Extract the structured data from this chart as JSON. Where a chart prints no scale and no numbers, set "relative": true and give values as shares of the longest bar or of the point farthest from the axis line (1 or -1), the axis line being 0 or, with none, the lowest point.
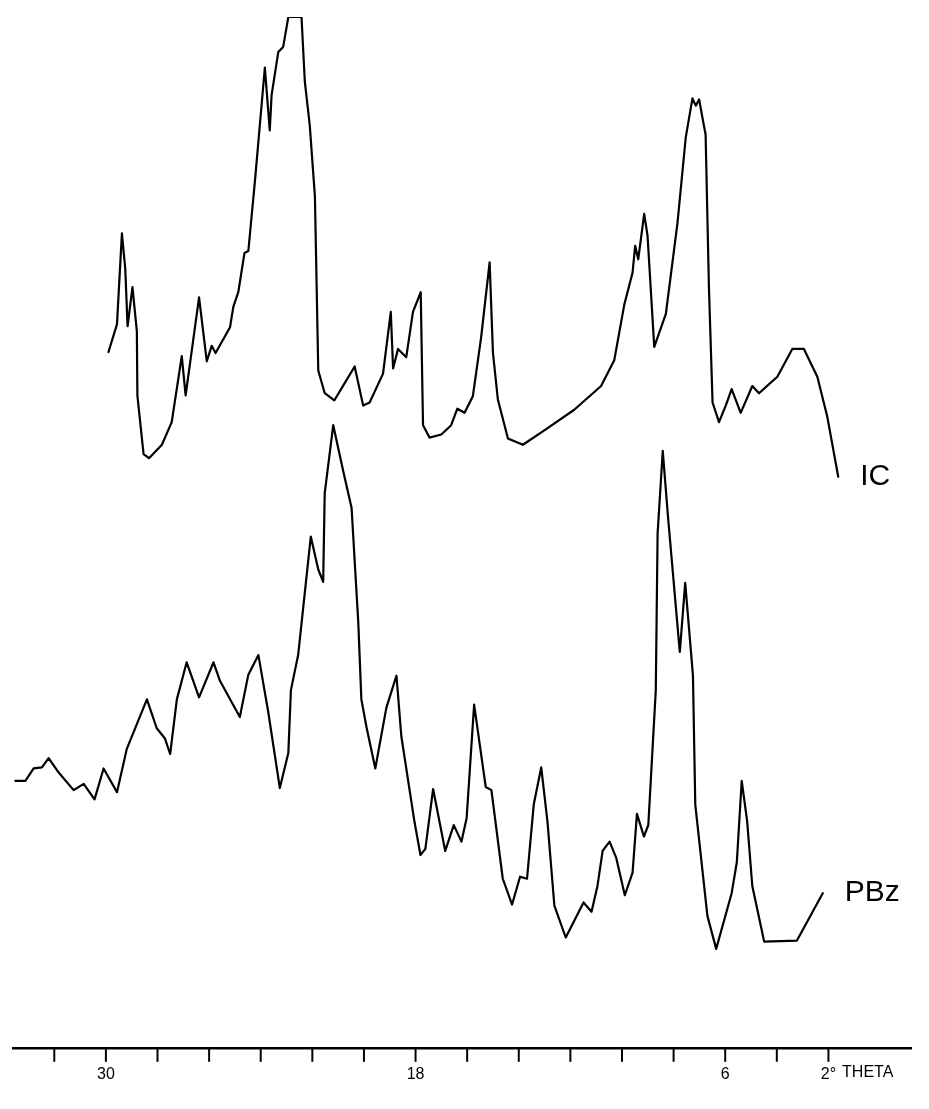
{
  "chart_data": {
    "type": "line",
    "xlabel": "THETA",
    "relative": true,
    "marker": "none",
    "xlim": [
      33.6,
      -1.2
    ],
    "xticks": [
      {
        "value": 32,
        "label": null
      },
      30,
      {
        "value": 28,
        "label": null
      },
      {
        "value": 26,
        "label": null
      },
      {
        "value": 24,
        "label": null
      },
      {
        "value": 22,
        "label": null
      },
      {
        "value": 20,
        "label": null
      },
      18,
      {
        "value": 16,
        "label": null
      },
      {
        "value": 14,
        "label": null
      },
      {
        "value": 12,
        "label": null
      },
      {
        "value": 10,
        "label": null
      },
      {
        "value": 8,
        "label": null
      },
      6,
      {
        "value": 4,
        "label": null
      },
      {
        "value": 2,
        "label": "2°"
      }
    ],
    "series": [
      {
        "name": "IC",
        "color": "#000000",
        "x": [
          29.9,
          29.57,
          29.38,
          29.25,
          29.16,
          28.97,
          28.8,
          28.78,
          28.54,
          28.33,
          27.83,
          27.45,
          27.06,
          26.91,
          26.39,
          26.09,
          25.9,
          25.75,
          25.19,
          25.06,
          24.87,
          24.63,
          24.48,
          24.22,
          23.84,
          23.65,
          23.58,
          23.32,
          23.13,
          22.93,
          22.42,
          22.29,
          22.1,
          21.9,
          21.77,
          21.52,
          21.15,
          20.74,
          20.36,
          20.22,
          20.03,
          19.78,
          19.26,
          18.96,
          18.87,
          18.68,
          18.36,
          18.1,
          17.8,
          17.71,
          17.46,
          17.0,
          16.62,
          16.38,
          16.1,
          15.78,
          15.46,
          15.13,
          15.0,
          14.81,
          14.42,
          13.84,
          13.01,
          11.85,
          10.81,
          10.3,
          9.91,
          9.59,
          9.49,
          9.37,
          9.14,
          9.01,
          8.75,
          8.3,
          7.85,
          7.53,
          7.27,
          7.14,
          7.01,
          6.88,
          6.76,
          6.63,
          6.49,
          6.24,
          5.98,
          5.75,
          5.4,
          4.95,
          4.69,
          3.98,
          3.4,
          2.95,
          2.43,
          2.05,
          1.62
        ],
        "values": [
          0.675,
          0.702,
          0.79,
          0.756,
          0.7,
          0.738,
          0.695,
          0.633,
          0.576,
          0.572,
          0.585,
          0.607,
          0.671,
          0.633,
          0.728,
          0.666,
          0.681,
          0.674,
          0.699,
          0.719,
          0.733,
          0.771,
          0.773,
          0.842,
          0.951,
          0.89,
          0.924,
          0.966,
          0.971,
          1.0,
          1.0,
          0.937,
          0.895,
          0.826,
          0.657,
          0.635,
          0.628,
          0.645,
          0.661,
          0.645,
          0.623,
          0.626,
          0.654,
          0.714,
          0.659,
          0.678,
          0.67,
          0.714,
          0.733,
          0.604,
          0.592,
          0.595,
          0.604,
          0.62,
          0.616,
          0.632,
          0.689,
          0.762,
          0.674,
          0.629,
          0.591,
          0.585,
          0.599,
          0.619,
          0.642,
          0.667,
          0.721,
          0.752,
          0.778,
          0.765,
          0.809,
          0.788,
          0.68,
          0.712,
          0.8,
          0.883,
          0.921,
          0.914,
          0.92,
          0.902,
          0.886,
          0.737,
          0.626,
          0.607,
          0.623,
          0.639,
          0.616,
          0.642,
          0.635,
          0.651,
          0.678,
          0.678,
          0.651,
          0.613,
          0.554
        ]
      },
      {
        "name": "PBz",
        "color": "#000000",
        "x": [
          33.51,
          33.12,
          32.8,
          32.48,
          32.22,
          31.83,
          31.25,
          30.86,
          30.44,
          30.09,
          29.57,
          29.19,
          28.41,
          28.03,
          27.71,
          27.51,
          27.25,
          26.87,
          26.39,
          25.83,
          25.58,
          24.81,
          24.48,
          24.09,
          23.71,
          23.26,
          22.93,
          22.83,
          22.55,
          22.06,
          21.77,
          21.58,
          21.52,
          21.19,
          20.8,
          20.48,
          20.22,
          20.1,
          19.9,
          19.56,
          19.13,
          18.74,
          18.55,
          18.04,
          17.81,
          17.62,
          17.32,
          16.85,
          16.52,
          16.22,
          16.02,
          15.73,
          15.28,
          15.06,
          14.62,
          14.26,
          13.95,
          13.68,
          13.42,
          13.13,
          12.89,
          12.62,
          12.18,
          11.49,
          11.18,
          10.95,
          10.75,
          10.48,
          10.22,
          9.89,
          9.59,
          9.42,
          9.15,
          8.98,
          8.69,
          8.62,
          8.42,
          8.22,
          7.76,
          7.55,
          7.25,
          7.16,
          6.69,
          6.35,
          5.75,
          5.55,
          5.36,
          5.15,
          4.95,
          4.49,
          3.22,
          2.22
        ],
        "values": [
          0.259,
          0.259,
          0.271,
          0.272,
          0.281,
          0.267,
          0.25,
          0.256,
          0.241,
          0.271,
          0.248,
          0.29,
          0.338,
          0.31,
          0.3,
          0.285,
          0.338,
          0.374,
          0.34,
          0.374,
          0.356,
          0.321,
          0.362,
          0.381,
          0.326,
          0.252,
          0.286,
          0.347,
          0.381,
          0.496,
          0.464,
          0.452,
          0.538,
          0.604,
          0.559,
          0.524,
          0.413,
          0.338,
          0.311,
          0.271,
          0.33,
          0.361,
          0.302,
          0.219,
          0.187,
          0.193,
          0.251,
          0.191,
          0.216,
          0.2,
          0.223,
          0.333,
          0.253,
          0.25,
          0.164,
          0.139,
          0.166,
          0.164,
          0.236,
          0.272,
          0.22,
          0.138,
          0.107,
          0.141,
          0.132,
          0.157,
          0.191,
          0.2,
          0.184,
          0.148,
          0.17,
          0.227,
          0.205,
          0.216,
          0.347,
          0.499,
          0.579,
          0.516,
          0.384,
          0.451,
          0.361,
          0.236,
          0.128,
          0.096,
          0.15,
          0.18,
          0.259,
          0.22,
          0.157,
          0.103,
          0.104,
          0.15
        ]
      }
    ]
  }
}
